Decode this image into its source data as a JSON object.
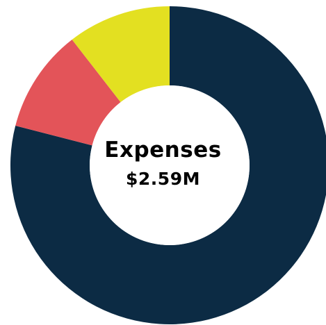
{
  "chart_data": {
    "type": "pie",
    "style": "donut",
    "center_title": "Expenses",
    "center_value": "$2.59M",
    "start_angle_deg": 0,
    "direction": "clockwise",
    "slices": [
      {
        "value": 79,
        "color": "#0c2b44"
      },
      {
        "value": 10.5,
        "color": "#e35459"
      },
      {
        "value": 10.5,
        "color": "#e3e021"
      }
    ],
    "background": "#ffffff",
    "hole_color": "#ffffff"
  }
}
